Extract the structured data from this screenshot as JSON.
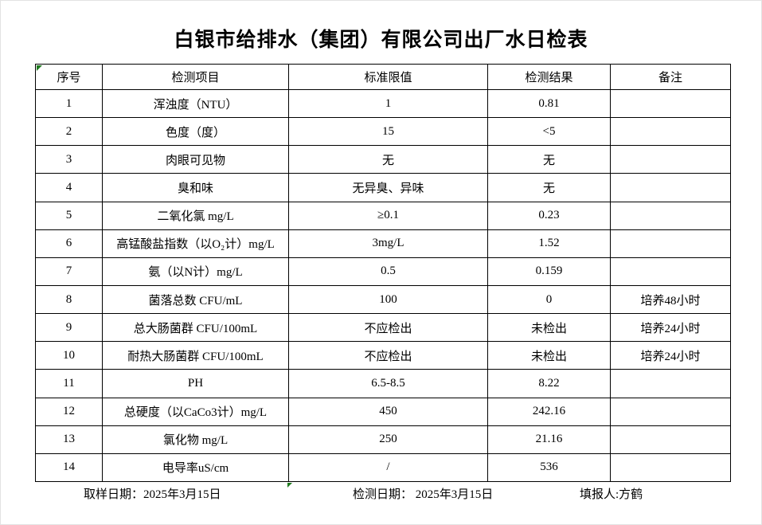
{
  "title": "白银市给排水（集团）有限公司出厂水日检表",
  "table": {
    "columns": [
      "序号",
      "检测项目",
      "标准限值",
      "检测结果",
      "备注"
    ],
    "rows": [
      {
        "no": "1",
        "item": "浑浊度（NTU）",
        "limit": "1",
        "result": "0.81",
        "remark": ""
      },
      {
        "no": "2",
        "item": "色度（度）",
        "limit": "15",
        "result": "<5",
        "remark": ""
      },
      {
        "no": "3",
        "item": "肉眼可见物",
        "limit": "无",
        "result": "无",
        "remark": ""
      },
      {
        "no": "4",
        "item": "臭和味",
        "limit": "无异臭、异味",
        "result": "无",
        "remark": ""
      },
      {
        "no": "5",
        "item": "二氧化氯 mg/L",
        "limit": "≥0.1",
        "result": "0.23",
        "remark": ""
      },
      {
        "no": "6",
        "item": "高锰酸盐指数（以O₂计）mg/L",
        "limit": "3mg/L",
        "result": "1.52",
        "remark": ""
      },
      {
        "no": "7",
        "item": "氨（以N计）mg/L",
        "limit": "0.5",
        "result": "0.159",
        "remark": ""
      },
      {
        "no": "8",
        "item": "菌落总数 CFU/mL",
        "limit": "100",
        "result": "0",
        "remark": "培养48小时"
      },
      {
        "no": "9",
        "item": "总大肠菌群 CFU/100mL",
        "limit": "不应检出",
        "result": "未检出",
        "remark": "培养24小时"
      },
      {
        "no": "10",
        "item": "耐热大肠菌群 CFU/100mL",
        "limit": "不应检出",
        "result": "未检出",
        "remark": "培养24小时"
      },
      {
        "no": "11",
        "item": "PH",
        "limit": "6.5-8.5",
        "result": "8.22",
        "remark": ""
      },
      {
        "no": "12",
        "item": "总硬度（以CaCo3计）mg/L",
        "limit": "450",
        "result": "242.16",
        "remark": ""
      },
      {
        "no": "13",
        "item": "氯化物 mg/L",
        "limit": "250",
        "result": "21.16",
        "remark": ""
      },
      {
        "no": "14",
        "item": "电导率uS/cm",
        "limit": "/",
        "result": "536",
        "remark": ""
      }
    ]
  },
  "footer": {
    "sampling_date": "取样日期：2025年3月15日",
    "test_date": "检测日期： 2025年3月15日",
    "reporter": "填报人:方鹤"
  },
  "colors": {
    "marker_green": "#1f7a1f",
    "border": "#000000"
  }
}
